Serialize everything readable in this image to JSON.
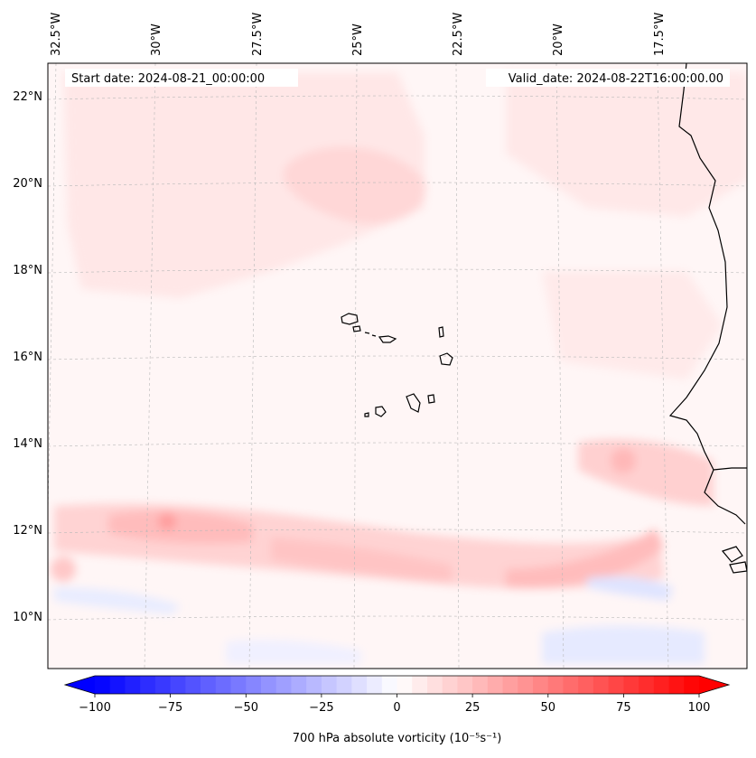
{
  "header": {
    "start_date": "Start date: 2024-08-21_00:00:00",
    "valid_date": "Valid_date: 2024-08-22T16:00:00.00"
  },
  "map": {
    "lon_labels": [
      "32.5°W",
      "30°W",
      "27.5°W",
      "25°W",
      "22.5°W",
      "20°W",
      "17.5°W"
    ],
    "lat_labels": [
      "22°N",
      "20°N",
      "18°N",
      "16°N",
      "14°N",
      "12°N",
      "10°N"
    ],
    "coast_color": "#000000",
    "grid_color": "#b0b0b0"
  },
  "colorbar": {
    "label": "700 hPa absolute vorticity (10⁻⁵s⁻¹)",
    "ticks": [
      "−100",
      "−75",
      "−50",
      "−25",
      "0",
      "25",
      "50",
      "75",
      "100"
    ],
    "min": -100,
    "max": 100,
    "levels": 40,
    "neg_color": "#0000ff",
    "pos_color": "#ff0000"
  }
}
